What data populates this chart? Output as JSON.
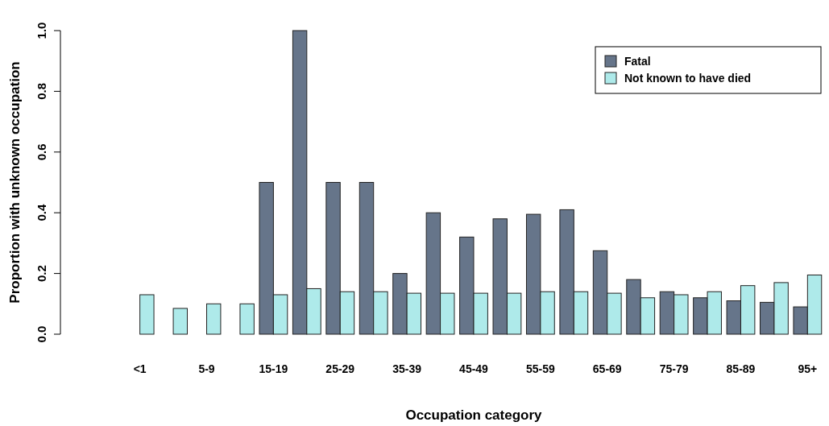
{
  "chart_data": {
    "type": "bar",
    "xlabel": "Occupation category",
    "ylabel": "Proportion with unknown occupation",
    "categories": [
      "<1",
      null,
      "5-9",
      null,
      "15-19",
      null,
      "25-29",
      null,
      "35-39",
      null,
      "45-49",
      null,
      "55-59",
      null,
      "65-69",
      null,
      "75-79",
      null,
      "85-89",
      null,
      "95+"
    ],
    "series": [
      {
        "name": "Fatal",
        "color": "#66758a",
        "values": [
          0,
          null,
          null,
          null,
          0.5,
          1.0,
          0.5,
          0.5,
          0.2,
          0.4,
          0.32,
          0.38,
          0.395,
          0.41,
          0.275,
          0.18,
          0.14,
          0.12,
          0.11,
          0.105,
          0.09
        ]
      },
      {
        "name": "Not known to have died",
        "color": "#aeeaea",
        "values": [
          0.13,
          0.085,
          0.1,
          0.1,
          0.13,
          0.15,
          0.14,
          0.14,
          0.135,
          0.135,
          0.135,
          0.135,
          0.14,
          0.14,
          0.135,
          0.12,
          0.13,
          0.14,
          0.16,
          0.17,
          0.195
        ]
      }
    ],
    "ylim": [
      0,
      1
    ],
    "yticks": [
      {
        "value": 0,
        "label": "0.0"
      },
      {
        "value": 0.2,
        "label": "0.2"
      },
      {
        "value": 0.4,
        "label": "0.4"
      },
      {
        "value": 0.6,
        "label": "0.6"
      },
      {
        "value": 0.8,
        "label": "0.8"
      },
      {
        "value": 1,
        "label": "1.0"
      }
    ],
    "grid": false,
    "legend": "top right"
  }
}
